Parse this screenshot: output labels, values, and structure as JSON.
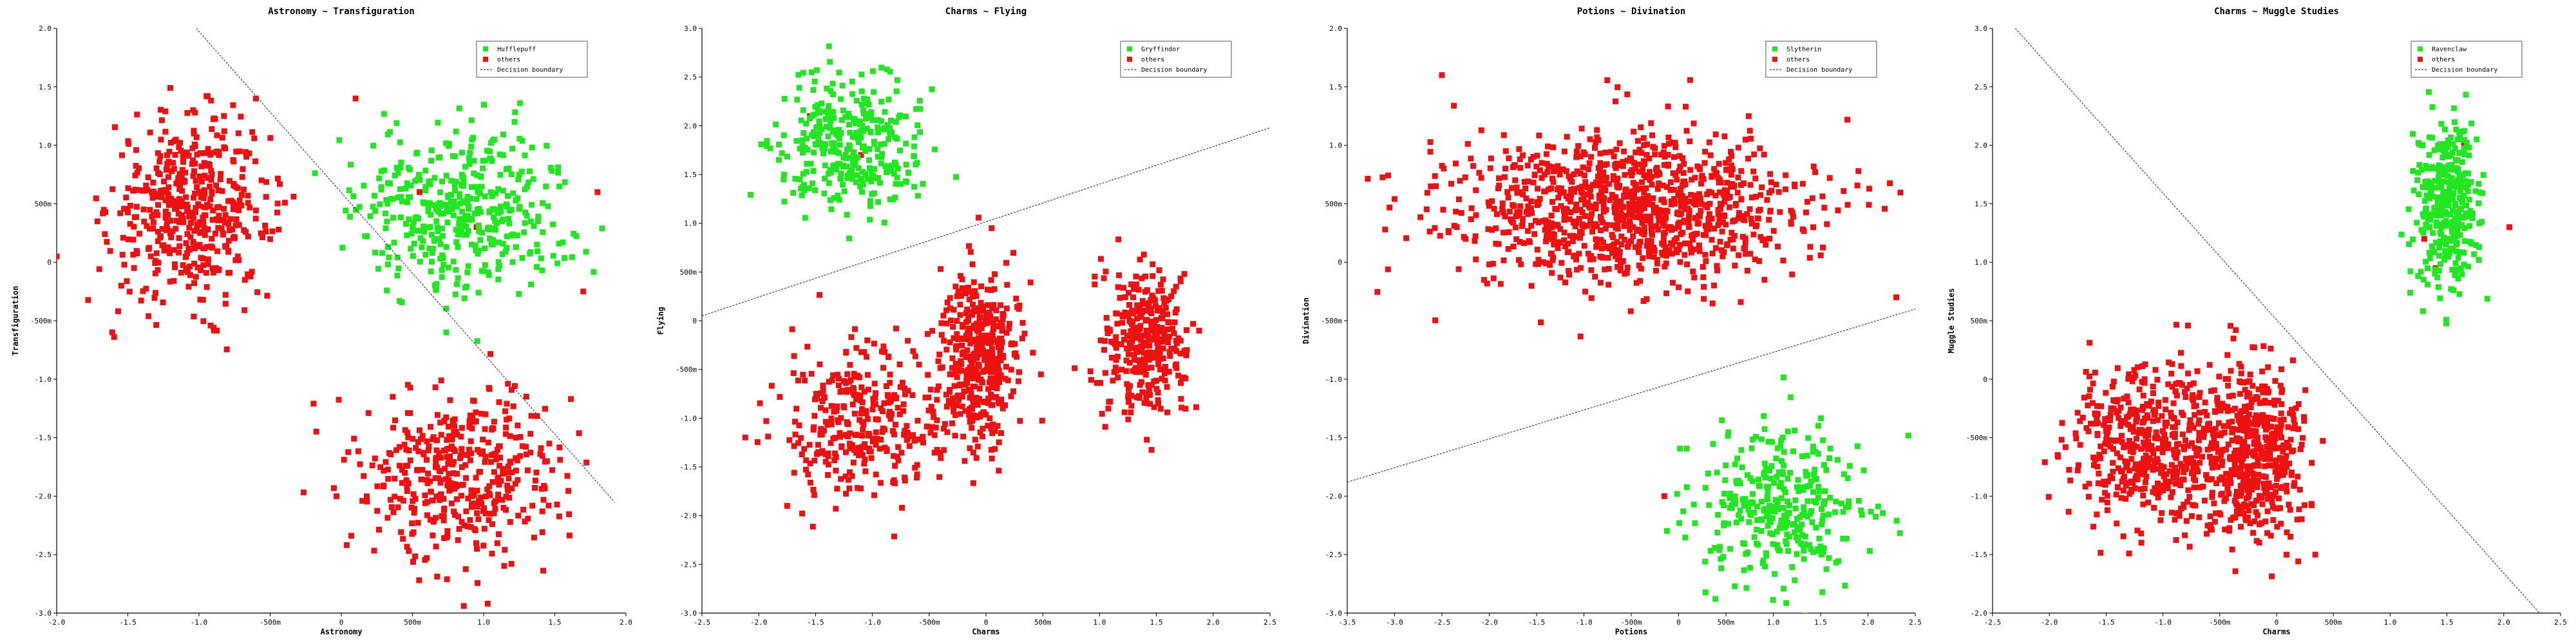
{
  "chart_data": [
    {
      "type": "scatter",
      "title": "Astronomy ~ Transfiguration",
      "xlabel": "Astronomy",
      "ylabel": "Transfiguration",
      "xlim": [
        -2.0,
        2.0
      ],
      "ylim": [
        -3.0,
        2.0
      ],
      "xticks": [
        -2.0,
        -1.5,
        -1.0,
        -0.5,
        0,
        0.5,
        1.0,
        1.5,
        2.0
      ],
      "xtick_labels": [
        "-2.0",
        "-1.5",
        "-1.0",
        "-500m",
        "0",
        "500m",
        "1.0",
        "1.5",
        "2.0"
      ],
      "yticks": [
        -3.0,
        -2.5,
        -2.0,
        -1.5,
        -1.0,
        -0.5,
        0,
        0.5,
        1.0,
        1.5,
        2.0
      ],
      "ytick_labels": [
        "-3.0",
        "-2.5",
        "-2.0",
        "-1.5",
        "-1.0",
        "-500m",
        "0",
        "500m",
        "1.0",
        "1.5",
        "2.0"
      ],
      "legend_position": "top-right",
      "grid": false,
      "series": [
        {
          "name": "Hufflepuff",
          "color": "#22e622",
          "marker": "square",
          "clusters": [
            {
              "cx": 0.85,
              "cy": 0.45,
              "sx": 0.38,
              "sy": 0.35,
              "n": 420
            }
          ]
        },
        {
          "name": "others",
          "color": "#ee1111",
          "marker": "square",
          "clusters": [
            {
              "cx": -1.05,
              "cy": 0.45,
              "sx": 0.28,
              "sy": 0.38,
              "n": 480
            },
            {
              "cx": 0.85,
              "cy": -1.8,
              "sx": 0.35,
              "sy": 0.38,
              "n": 420
            }
          ],
          "extra_points": [
            [
              -2.0,
              0.05
            ],
            [
              1.8,
              0.6
            ],
            [
              0.1,
              1.4
            ],
            [
              -0.6,
              1.4
            ],
            [
              1.7,
              -0.25
            ],
            [
              0.55,
              0.6
            ],
            [
              0.95,
              0.3
            ]
          ]
        }
      ],
      "boundary": {
        "name": "Decision boundary",
        "x": [
          -1.02,
          1.92
        ],
        "y": [
          2.0,
          -2.05
        ]
      }
    },
    {
      "type": "scatter",
      "title": "Charms ~ Flying",
      "xlabel": "Charms",
      "ylabel": "Flying",
      "xlim": [
        -2.5,
        2.5
      ],
      "ylim": [
        -3.0,
        3.0
      ],
      "xticks": [
        -2.5,
        -2.0,
        -1.5,
        -1.0,
        -0.5,
        0,
        0.5,
        1.0,
        1.5,
        2.0,
        2.5
      ],
      "xtick_labels": [
        "-2.5",
        "-2.0",
        "-1.5",
        "-1.0",
        "-500m",
        "0",
        "500m",
        "1.0",
        "1.5",
        "2.0",
        "2.5"
      ],
      "yticks": [
        -3.0,
        -2.5,
        -2.0,
        -1.5,
        -1.0,
        -0.5,
        0,
        0.5,
        1.0,
        1.5,
        2.0,
        2.5,
        3.0
      ],
      "ytick_labels": [
        "-3.0",
        "-2.5",
        "-2.0",
        "-1.5",
        "-1.0",
        "-500m",
        "0",
        "500m",
        "1.0",
        "1.5",
        "2.0",
        "2.5",
        "3.0"
      ],
      "legend_position": "top-right",
      "grid": false,
      "series": [
        {
          "name": "Gryffindor",
          "color": "#22e622",
          "marker": "square",
          "clusters": [
            {
              "cx": -1.2,
              "cy": 1.8,
              "sx": 0.32,
              "sy": 0.35,
              "n": 330
            }
          ]
        },
        {
          "name": "others",
          "color": "#ee1111",
          "marker": "square",
          "clusters": [
            {
              "cx": -1.1,
              "cy": -1.0,
              "sx": 0.35,
              "sy": 0.4,
              "n": 330
            },
            {
              "cx": -0.05,
              "cy": -0.4,
              "sx": 0.17,
              "sy": 0.45,
              "n": 420
            },
            {
              "cx": 1.4,
              "cy": -0.25,
              "sx": 0.18,
              "sy": 0.38,
              "n": 330
            }
          ],
          "extra_points": [
            [
              -1.75,
              -1.9
            ],
            [
              -1.55,
              2.1
            ],
            [
              -1.1,
              1.7
            ],
            [
              0.05,
              0.95
            ]
          ]
        }
      ],
      "boundary": {
        "name": "Decision boundary",
        "x": [
          -2.5,
          2.5
        ],
        "y": [
          0.05,
          1.98
        ]
      }
    },
    {
      "type": "scatter",
      "title": "Potions ~ Divination",
      "xlabel": "Potions",
      "ylabel": "Divination",
      "xlim": [
        -3.5,
        2.5
      ],
      "ylim": [
        -3.0,
        2.0
      ],
      "xticks": [
        -3.5,
        -3.0,
        -2.5,
        -2.0,
        -1.5,
        -1.0,
        -0.5,
        0,
        0.5,
        1.0,
        1.5,
        2.0,
        2.5
      ],
      "xtick_labels": [
        "-3.5",
        "-3.0",
        "-2.5",
        "-2.0",
        "-1.5",
        "-1.0",
        "-500m",
        "0",
        "500m",
        "1.0",
        "1.5",
        "2.0",
        "2.5"
      ],
      "yticks": [
        -3.0,
        -2.5,
        -2.0,
        -1.5,
        -1.0,
        -0.5,
        0,
        0.5,
        1.0,
        1.5,
        2.0
      ],
      "ytick_labels": [
        "-3.0",
        "-2.5",
        "-2.0",
        "-1.5",
        "-1.0",
        "-500m",
        "0",
        "500m",
        "1.0",
        "1.5",
        "2.0"
      ],
      "legend_position": "top-right",
      "grid": false,
      "series": [
        {
          "name": "Slytherin",
          "color": "#22e622",
          "marker": "square",
          "clusters": [
            {
              "cx": 1.05,
              "cy": -2.05,
              "sx": 0.45,
              "sy": 0.35,
              "n": 330
            }
          ]
        },
        {
          "name": "others",
          "color": "#ee1111",
          "marker": "square",
          "clusters": [
            {
              "cx": -0.5,
              "cy": 0.45,
              "sx": 0.95,
              "sy": 0.33,
              "n": 1050
            }
          ],
          "extra_points": [
            [
              -2.5,
              1.6
            ],
            [
              -3.1,
              0.28
            ],
            [
              -0.15,
              -2.0
            ],
            [
              2.3,
              -0.3
            ]
          ]
        }
      ],
      "boundary": {
        "name": "Decision boundary",
        "x": [
          -3.5,
          2.5
        ],
        "y": [
          -1.88,
          -0.4
        ]
      }
    },
    {
      "type": "scatter",
      "title": "Charms ~ Muggle Studies",
      "xlabel": "Charms",
      "ylabel": "Muggle Studies",
      "xlim": [
        -2.5,
        2.5
      ],
      "ylim": [
        -2.0,
        3.0
      ],
      "xticks": [
        -2.5,
        -2.0,
        -1.5,
        -1.0,
        -0.5,
        0,
        0.5,
        1.0,
        1.5,
        2.0,
        2.5
      ],
      "xtick_labels": [
        "-2.5",
        "-2.0",
        "-1.5",
        "-1.0",
        "-500m",
        "0",
        "500m",
        "1.0",
        "1.5",
        "2.0",
        "2.5"
      ],
      "yticks": [
        -2.0,
        -1.5,
        -1.0,
        -0.5,
        0,
        0.5,
        1.0,
        1.5,
        2.0,
        2.5,
        3.0
      ],
      "ytick_labels": [
        "-2.0",
        "-1.5",
        "-1.0",
        "-500m",
        "0",
        "500m",
        "1.0",
        "1.5",
        "2.0",
        "2.5",
        "3.0"
      ],
      "legend_position": "top-right",
      "grid": false,
      "series": [
        {
          "name": "Ravenclaw",
          "color": "#22e622",
          "marker": "square",
          "clusters": [
            {
              "cx": 1.5,
              "cy": 1.5,
              "sx": 0.13,
              "sy": 0.38,
              "n": 330
            }
          ]
        },
        {
          "name": "others",
          "color": "#ee1111",
          "marker": "square",
          "clusters": [
            {
              "cx": -1.1,
              "cy": -0.55,
              "sx": 0.35,
              "sy": 0.35,
              "n": 520
            },
            {
              "cx": -0.2,
              "cy": -0.6,
              "sx": 0.22,
              "sy": 0.38,
              "n": 480
            }
          ],
          "extra_points": [
            [
              2.05,
              1.3
            ],
            [
              1.3,
              1.2
            ],
            [
              1.5,
              1.6
            ],
            [
              1.65,
              2.0
            ],
            [
              1.4,
              0.95
            ]
          ]
        }
      ],
      "boundary": {
        "name": "Decision boundary",
        "x": [
          -2.3,
          2.5
        ],
        "y": [
          3.0,
          -2.2
        ]
      }
    }
  ]
}
